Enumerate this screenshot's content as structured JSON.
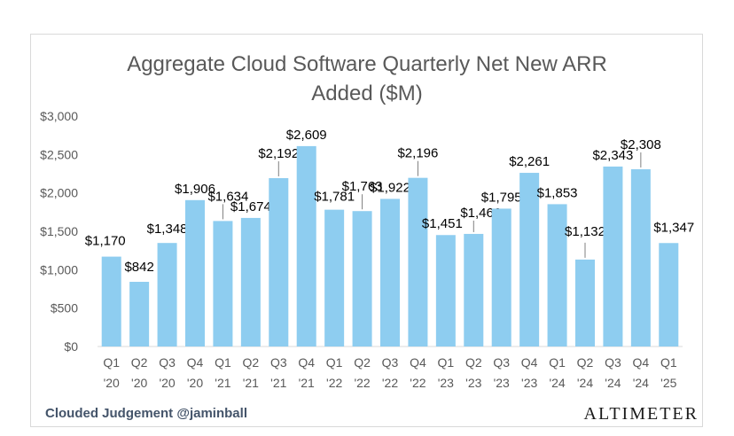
{
  "chart_data": {
    "type": "bar",
    "title_line1": "Aggregate Cloud Software Quarterly Net New ARR",
    "title_line2": "Added ($M)",
    "xlabel": "",
    "ylabel": "",
    "ylim": [
      0,
      3000
    ],
    "y_ticks": [
      0,
      500,
      1000,
      1500,
      2000,
      2500,
      3000
    ],
    "y_tick_labels": [
      "$0",
      "$500",
      "$1,000",
      "$1,500",
      "$2,000",
      "$2,500",
      "$3,000"
    ],
    "categories": [
      {
        "q": "Q1",
        "y": "'20"
      },
      {
        "q": "Q2",
        "y": "'20"
      },
      {
        "q": "Q3",
        "y": "'20"
      },
      {
        "q": "Q4",
        "y": "'20"
      },
      {
        "q": "Q1",
        "y": "'21"
      },
      {
        "q": "Q2",
        "y": "'21"
      },
      {
        "q": "Q3",
        "y": "'21"
      },
      {
        "q": "Q4",
        "y": "'21"
      },
      {
        "q": "Q1",
        "y": "'22"
      },
      {
        "q": "Q2",
        "y": "'22"
      },
      {
        "q": "Q3",
        "y": "'22"
      },
      {
        "q": "Q4",
        "y": "'22"
      },
      {
        "q": "Q1",
        "y": "'23"
      },
      {
        "q": "Q2",
        "y": "'23"
      },
      {
        "q": "Q3",
        "y": "'23"
      },
      {
        "q": "Q4",
        "y": "'23"
      },
      {
        "q": "Q1",
        "y": "'24"
      },
      {
        "q": "Q2",
        "y": "'24"
      },
      {
        "q": "Q3",
        "y": "'24"
      },
      {
        "q": "Q4",
        "y": "'24"
      },
      {
        "q": "Q1",
        "y": "'25"
      }
    ],
    "values": [
      1170,
      842,
      1348,
      1906,
      1634,
      1674,
      2192,
      2609,
      1781,
      1763,
      1922,
      2196,
      1451,
      1466,
      1795,
      2261,
      1853,
      1132,
      2343,
      2308,
      1347
    ],
    "data_labels": [
      "$1,170",
      "$842",
      "$1,348",
      "$1,906",
      "$1,634",
      "$1,674",
      "$2,192",
      "$2,609",
      "$1,781",
      "$1,763",
      "$1,922",
      "$2,196",
      "$1,451",
      "$1,466",
      "$1,795",
      "$2,261",
      "$1,853",
      "$1,132",
      "$2,343",
      "$2,308",
      "$1,347"
    ],
    "grid": false,
    "bar_color": "#8ecdf0"
  },
  "footer": {
    "source": "Clouded Judgement @jaminball",
    "brand": "ALTIMETER"
  }
}
